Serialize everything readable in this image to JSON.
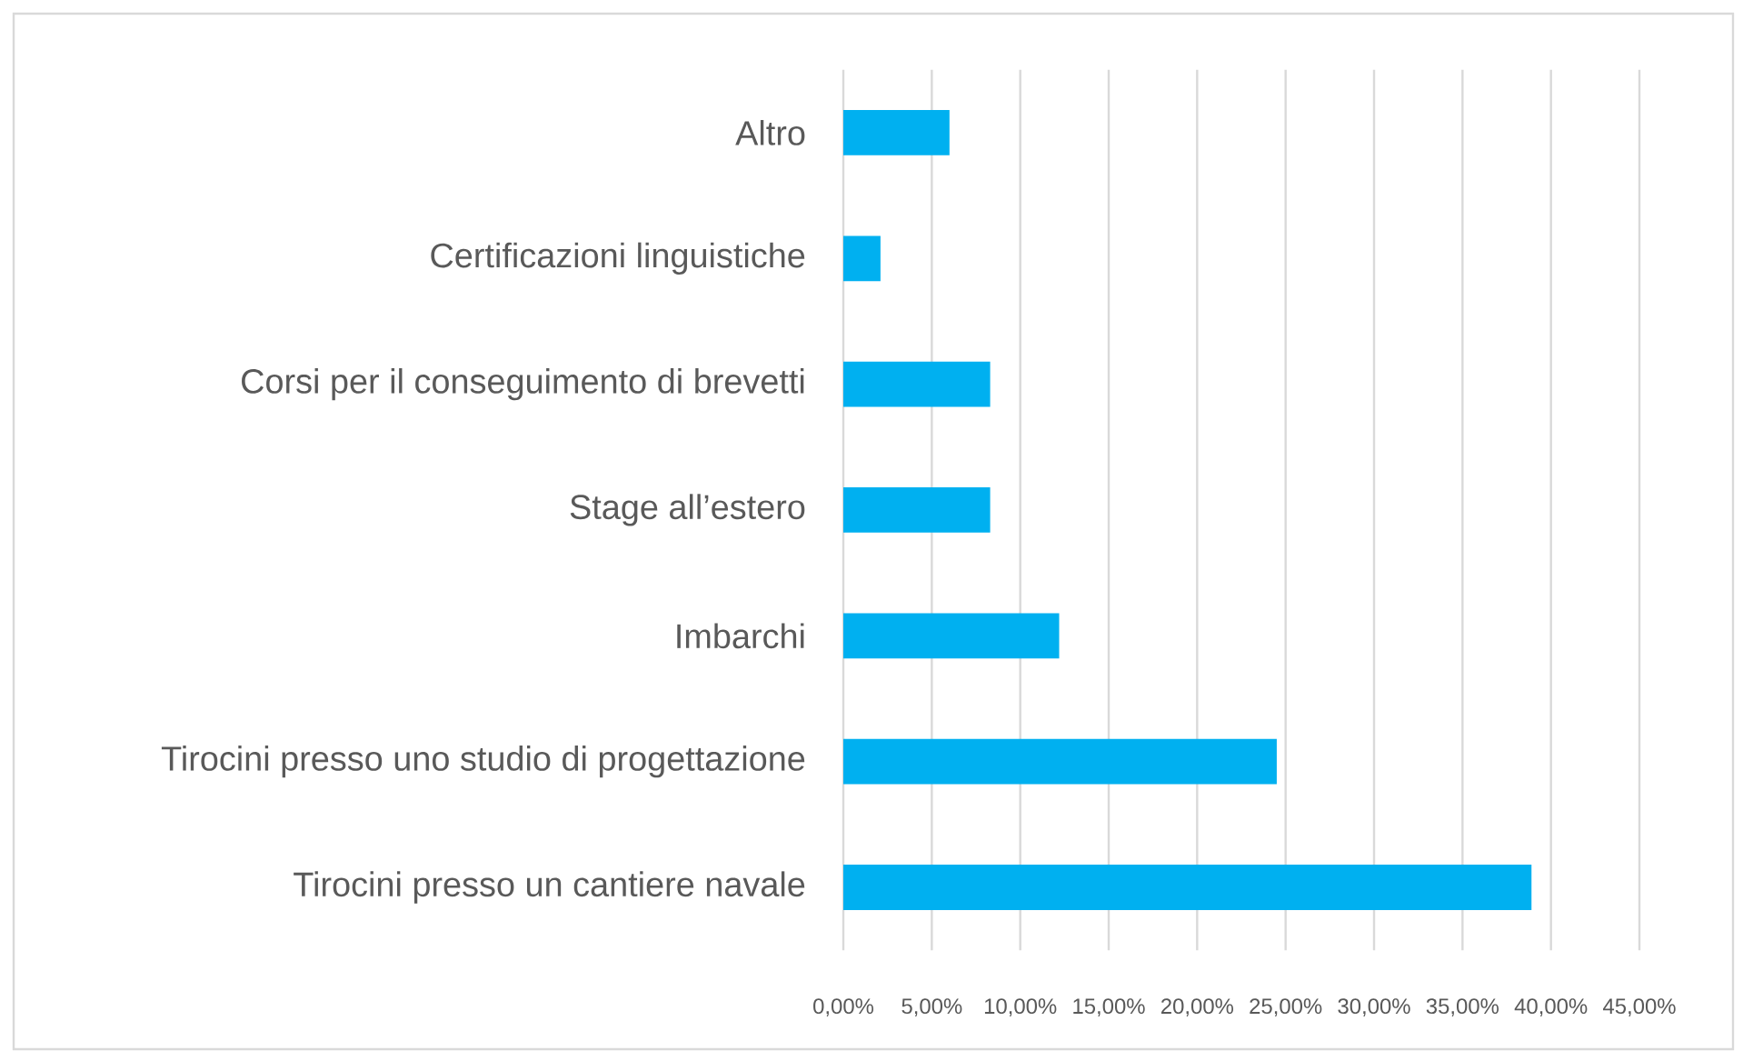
{
  "chart_data": {
    "type": "bar",
    "orientation": "horizontal",
    "categories": [
      "Altro",
      "Certificazioni linguistiche",
      "Corsi per il conseguimento di brevetti",
      "Stage all’estero",
      "Imbarchi",
      "Tirocini presso uno studio di progettazione",
      "Tirocini presso un cantiere navale"
    ],
    "values": [
      6.0,
      2.1,
      8.3,
      8.3,
      12.2,
      24.5,
      38.9
    ],
    "color": "#00b0f0",
    "xlim": [
      0,
      45
    ],
    "xticks": [
      {
        "value": 0,
        "label": "0,00%"
      },
      {
        "value": 5,
        "label": "5,00%"
      },
      {
        "value": 10,
        "label": "10,00%"
      },
      {
        "value": 15,
        "label": "15,00%"
      },
      {
        "value": 20,
        "label": "20,00%"
      },
      {
        "value": 25,
        "label": "25,00%"
      },
      {
        "value": 30,
        "label": "30,00%"
      },
      {
        "value": 35,
        "label": "35,00%"
      },
      {
        "value": 40,
        "label": "40,00%"
      },
      {
        "value": 45,
        "label": "45,00%"
      }
    ],
    "grid": "x"
  }
}
